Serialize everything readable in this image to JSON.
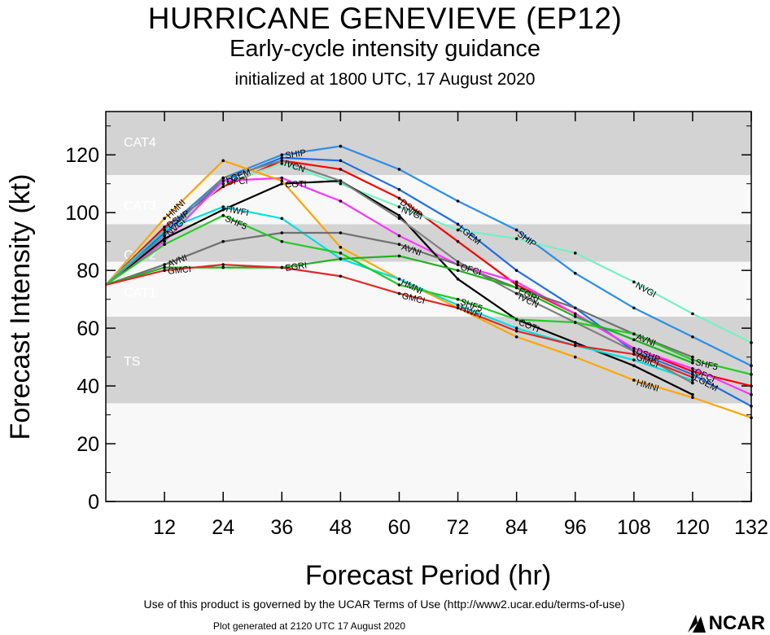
{
  "header": {
    "title": "HURRICANE GENEVIEVE (EP12)",
    "subtitle": "Early-cycle intensity guidance",
    "subtitle2": "initialized at 1800 UTC, 17 August 2020"
  },
  "footer": {
    "terms": "Use of this product is governed by the UCAR Terms of Use (http://www2.ucar.edu/terms-of-use)",
    "generated": "Plot generated at 2120 UTC   17 August 2020",
    "logo_text": "NCAR"
  },
  "chart_data": {
    "type": "line",
    "xlabel": "Forecast Period (hr)",
    "ylabel": "Forecast Intensity (kt)",
    "xlim": [
      0,
      132
    ],
    "ylim": [
      0,
      135
    ],
    "xticks": [
      12,
      24,
      36,
      48,
      60,
      72,
      84,
      96,
      108,
      120,
      132
    ],
    "yticks": [
      0,
      20,
      40,
      60,
      80,
      100,
      120
    ],
    "bands": [
      {
        "label": "TS",
        "from": 34,
        "to": 64,
        "color": "#d3d3d3"
      },
      {
        "label": "CAT1",
        "from": 64,
        "to": 83,
        "color": "#f8f8f8"
      },
      {
        "label": "CAT2",
        "from": 83,
        "to": 96,
        "color": "#d3d3d3"
      },
      {
        "label": "CAT3",
        "from": 96,
        "to": 113,
        "color": "#f8f8f8"
      },
      {
        "label": "CAT4",
        "from": 113,
        "to": 137,
        "color": "#d3d3d3"
      }
    ],
    "background_color": "#f8f8f8",
    "series": [
      {
        "name": "DSHP",
        "color": "#ff0000",
        "x": [
          0,
          12,
          24,
          36,
          48,
          60,
          72,
          84,
          96,
          108,
          120,
          132
        ],
        "y": [
          75,
          95,
          109,
          118,
          115,
          105,
          90,
          75,
          65,
          53,
          45,
          40
        ]
      },
      {
        "name": "LGEM",
        "color": "#1e6ee6",
        "x": [
          0,
          12,
          24,
          36,
          48,
          60,
          72,
          84,
          96,
          108,
          120,
          132
        ],
        "y": [
          75,
          93,
          111,
          119,
          118,
          108,
          96,
          80,
          67,
          52,
          44,
          33
        ]
      },
      {
        "name": "SHIP",
        "color": "#2a8fe8",
        "x": [
          0,
          12,
          24,
          36,
          48,
          60,
          72,
          84,
          96,
          108,
          120,
          132
        ],
        "y": [
          75,
          94,
          112,
          120,
          123,
          115,
          104,
          94,
          79,
          67,
          57,
          47
        ]
      },
      {
        "name": "NVGI",
        "color": "#74f2c5",
        "x": [
          0,
          12,
          24,
          36,
          48,
          60,
          72,
          84,
          96,
          108,
          120,
          132
        ],
        "y": [
          75,
          92,
          110,
          117,
          110,
          102,
          94,
          91,
          86,
          76,
          65,
          55
        ]
      },
      {
        "name": "OFCI",
        "color": "#ff33ff",
        "x": [
          0,
          12,
          24,
          36,
          48,
          60,
          72,
          84,
          96,
          108,
          120,
          132
        ],
        "y": [
          75,
          90,
          111,
          112,
          104,
          92,
          82,
          76,
          65,
          53,
          46,
          37
        ]
      },
      {
        "name": "COTI",
        "color": "#000000",
        "x": [
          0,
          12,
          24,
          36,
          48,
          60,
          72,
          84,
          96,
          108,
          120
        ],
        "y": [
          75,
          91,
          101,
          110,
          111,
          99,
          77,
          63,
          55,
          47,
          37
        ]
      },
      {
        "name": "HMNI",
        "color": "#ffa500",
        "x": [
          0,
          12,
          24,
          36,
          48,
          60,
          72,
          84,
          96,
          108,
          120,
          132
        ],
        "y": [
          75,
          98,
          118,
          111,
          88,
          77,
          67,
          57,
          50,
          42,
          36,
          29
        ]
      },
      {
        "name": "HWFI",
        "color": "#00e0e0",
        "x": [
          0,
          12,
          24,
          36,
          48,
          60,
          72,
          84,
          96,
          108,
          120
        ],
        "y": [
          75,
          94,
          102,
          98,
          84,
          77,
          68,
          60,
          54,
          49,
          42
        ]
      },
      {
        "name": "IVCN",
        "color": "#808080",
        "x": [
          0,
          12,
          24,
          36,
          48,
          60,
          72,
          84,
          96,
          108,
          120
        ],
        "y": [
          75,
          92,
          112,
          118,
          111,
          98,
          83,
          72,
          62,
          52,
          41
        ]
      },
      {
        "name": "AVNI",
        "color": "#707070",
        "x": [
          0,
          12,
          24,
          36,
          48,
          60,
          72,
          84,
          96,
          108,
          120
        ],
        "y": [
          75,
          82,
          90,
          93,
          93,
          89,
          82,
          74,
          67,
          58,
          50
        ]
      },
      {
        "name": "SHF5",
        "color": "#22cc22",
        "x": [
          0,
          12,
          24,
          36,
          48,
          60,
          72,
          84,
          96,
          108,
          120,
          132
        ],
        "y": [
          75,
          89,
          99,
          90,
          86,
          75,
          70,
          63,
          62,
          58,
          49,
          44
        ]
      },
      {
        "name": "EGRI",
        "color": "#1eb41e",
        "x": [
          0,
          12,
          24,
          36,
          48,
          60,
          72,
          84,
          96,
          108,
          120
        ],
        "y": [
          75,
          81,
          81,
          81,
          84,
          85,
          80,
          74,
          64,
          56,
          48
        ]
      },
      {
        "name": "GMCI",
        "color": "#e02828",
        "x": [
          0,
          12,
          24,
          36,
          48,
          60,
          72,
          84,
          96,
          108,
          120
        ],
        "y": [
          75,
          80,
          82,
          81,
          78,
          72,
          67,
          59,
          54,
          51,
          43
        ]
      }
    ]
  }
}
